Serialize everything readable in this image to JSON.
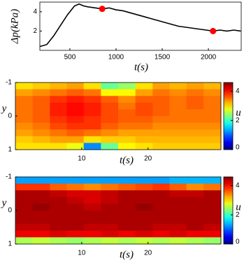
{
  "chart_data": [
    {
      "type": "line",
      "xlabel": "t(s)",
      "ylabel": "Δp(kPa)",
      "color": "#000000",
      "x": [
        175,
        250,
        325,
        400,
        475,
        550,
        600,
        650,
        700,
        775,
        850,
        925,
        1000,
        1075,
        1150,
        1225,
        1300,
        1375,
        1450,
        1525,
        1600,
        1675,
        1750,
        1825,
        1900,
        1975,
        2050,
        2125,
        2200,
        2275,
        2350
      ],
      "values": [
        0.4,
        0.6,
        1.5,
        2.6,
        3.7,
        4.6,
        4.8,
        4.6,
        4.5,
        4.4,
        4.3,
        4.4,
        4.2,
        4.1,
        3.9,
        3.7,
        3.5,
        3.3,
        3.1,
        2.9,
        2.7,
        2.5,
        2.4,
        2.3,
        2.2,
        2.1,
        2.0,
        2.1,
        2.0,
        2.1,
        2.0
      ],
      "markers": {
        "x": [
          850,
          2050
        ],
        "values": [
          4.3,
          2.0
        ],
        "color": "#ff0000"
      },
      "xlim": [
        175,
        2355
      ],
      "ylim": [
        0,
        5
      ],
      "xticks": [
        500,
        1000,
        1500,
        2000
      ],
      "yticks": [
        2,
        4
      ]
    },
    {
      "type": "heatmap",
      "xlabel": "t(s)",
      "ylabel": "y",
      "x": [
        1.3,
        3.9,
        6.5,
        9.0,
        11.6,
        14.2,
        16.8,
        19.4,
        22.0,
        24.5,
        27.1,
        29.7
      ],
      "y": [
        -0.9,
        -0.7,
        -0.5,
        -0.3,
        -0.1,
        0.1,
        0.3,
        0.5,
        0.7,
        0.9
      ],
      "z": [
        [
          3.0,
          3.1,
          3.2,
          3.3,
          3.0,
          2.2,
          2.4,
          3.0,
          3.3,
          3.2,
          3.3,
          3.2
        ],
        [
          3.3,
          3.4,
          3.5,
          3.6,
          3.5,
          2.9,
          2.9,
          3.3,
          3.5,
          3.4,
          3.5,
          3.4
        ],
        [
          3.5,
          3.6,
          3.8,
          3.9,
          3.8,
          3.6,
          3.4,
          3.6,
          3.6,
          3.5,
          3.6,
          3.5
        ],
        [
          3.5,
          3.6,
          3.9,
          4.0,
          3.9,
          3.7,
          3.5,
          3.7,
          3.6,
          3.5,
          3.6,
          3.5
        ],
        [
          3.5,
          3.6,
          3.9,
          4.0,
          3.9,
          3.7,
          3.6,
          3.7,
          3.6,
          3.5,
          3.5,
          3.5
        ],
        [
          3.5,
          3.6,
          3.8,
          3.9,
          3.8,
          3.7,
          3.6,
          3.6,
          3.5,
          3.5,
          3.5,
          3.5
        ],
        [
          3.4,
          3.5,
          3.7,
          3.8,
          3.8,
          3.6,
          3.5,
          3.5,
          3.4,
          3.4,
          3.4,
          3.4
        ],
        [
          3.3,
          3.4,
          3.5,
          3.6,
          3.5,
          3.4,
          3.3,
          3.3,
          3.3,
          3.3,
          3.3,
          3.3
        ],
        [
          3.1,
          3.2,
          3.3,
          3.3,
          3.0,
          3.1,
          3.1,
          3.2,
          3.2,
          3.2,
          3.2,
          3.2
        ],
        [
          3.0,
          3.0,
          3.0,
          2.8,
          1.2,
          2.2,
          2.9,
          3.0,
          3.1,
          3.1,
          3.1,
          3.1
        ]
      ],
      "xlim": [
        0,
        31
      ],
      "ylim": [
        -1,
        1
      ],
      "xticks": [
        10,
        20
      ],
      "yticks": [
        -1,
        0,
        1
      ],
      "colorbar": {
        "label": "u",
        "clim": [
          0,
          4.6
        ],
        "ticks": [
          0,
          2,
          4
        ],
        "colormap": "jet"
      }
    },
    {
      "type": "heatmap",
      "xlabel": "t(s)",
      "ylabel": "y",
      "x": [
        1.3,
        3.9,
        6.5,
        9.0,
        11.6,
        14.2,
        16.8,
        19.4,
        22.0,
        24.5,
        27.1,
        29.7
      ],
      "y": [
        -0.9,
        -0.7,
        -0.5,
        -0.3,
        -0.1,
        0.1,
        0.3,
        0.5,
        0.7,
        0.9
      ],
      "z": [
        [
          1.3,
          1.3,
          1.3,
          1.3,
          1.3,
          1.3,
          1.3,
          1.3,
          1.3,
          1.4,
          1.4,
          1.4
        ],
        [
          3.8,
          3.8,
          3.6,
          3.5,
          3.4,
          3.5,
          3.6,
          3.7,
          3.8,
          3.6,
          3.4,
          3.5
        ],
        [
          4.4,
          4.4,
          4.3,
          4.2,
          4.2,
          4.3,
          4.4,
          4.4,
          4.4,
          4.3,
          4.3,
          4.4
        ],
        [
          4.4,
          4.4,
          4.4,
          4.3,
          4.2,
          4.3,
          4.4,
          4.4,
          4.4,
          4.4,
          4.4,
          4.4
        ],
        [
          4.4,
          4.5,
          4.4,
          4.4,
          4.3,
          4.4,
          4.4,
          4.5,
          4.4,
          4.4,
          4.4,
          4.4
        ],
        [
          4.4,
          4.4,
          4.4,
          4.4,
          4.4,
          4.4,
          4.4,
          4.4,
          4.4,
          4.4,
          4.4,
          4.4
        ],
        [
          4.4,
          4.4,
          4.4,
          4.4,
          4.4,
          4.4,
          4.4,
          4.4,
          4.4,
          4.4,
          4.4,
          4.4
        ],
        [
          4.3,
          4.3,
          4.4,
          4.4,
          4.3,
          4.3,
          4.4,
          4.4,
          4.3,
          4.3,
          4.4,
          4.3
        ],
        [
          4.1,
          4.1,
          4.2,
          4.1,
          4.1,
          4.2,
          4.1,
          4.2,
          4.1,
          4.2,
          4.1,
          4.1
        ],
        [
          2.5,
          2.6,
          2.5,
          2.4,
          2.5,
          2.6,
          2.5,
          2.6,
          2.5,
          2.6,
          2.5,
          2.4
        ]
      ],
      "xlim": [
        0,
        31
      ],
      "ylim": [
        -1,
        1
      ],
      "xticks": [
        10,
        20
      ],
      "yticks": [
        -1,
        0,
        1
      ],
      "colorbar": {
        "label": "u",
        "clim": [
          0,
          4.6
        ],
        "ticks": [
          0,
          2,
          4
        ],
        "colormap": "jet"
      }
    }
  ]
}
